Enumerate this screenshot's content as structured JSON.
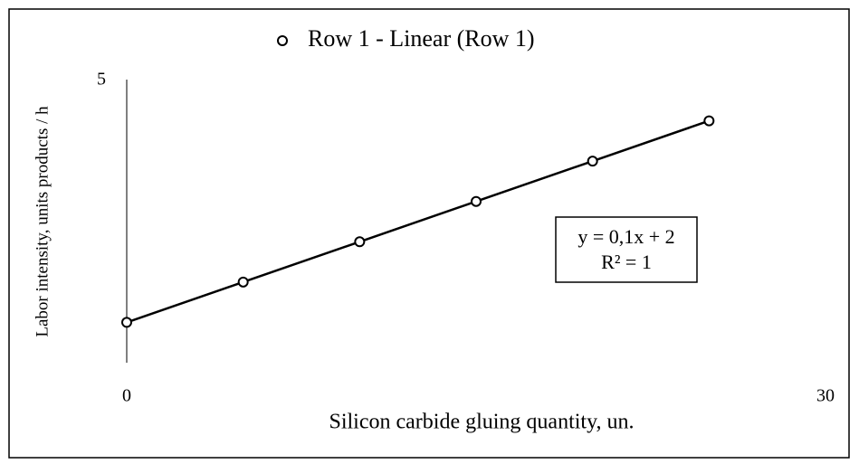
{
  "chart_data": {
    "type": "scatter",
    "legend_label": "Row 1 - Linear (Row 1)",
    "x_label": "Silicon carbide gluing quantity, un.",
    "y_label": "Labor intensity, units products / h",
    "series": [
      {
        "name": "Row 1",
        "color": "#000000",
        "x": [
          0,
          5,
          10,
          15,
          20,
          25
        ],
        "values": [
          2,
          2.5,
          3,
          3.5,
          4,
          4.5
        ]
      }
    ],
    "trendline": {
      "equation": "y = 0,1x + 2",
      "r2": "R² = 1"
    },
    "xlim": [
      0,
      30
    ],
    "xticks": [
      0,
      30
    ],
    "ylim": [
      1.5,
      5
    ],
    "yticks": [
      5
    ],
    "grid": false
  }
}
